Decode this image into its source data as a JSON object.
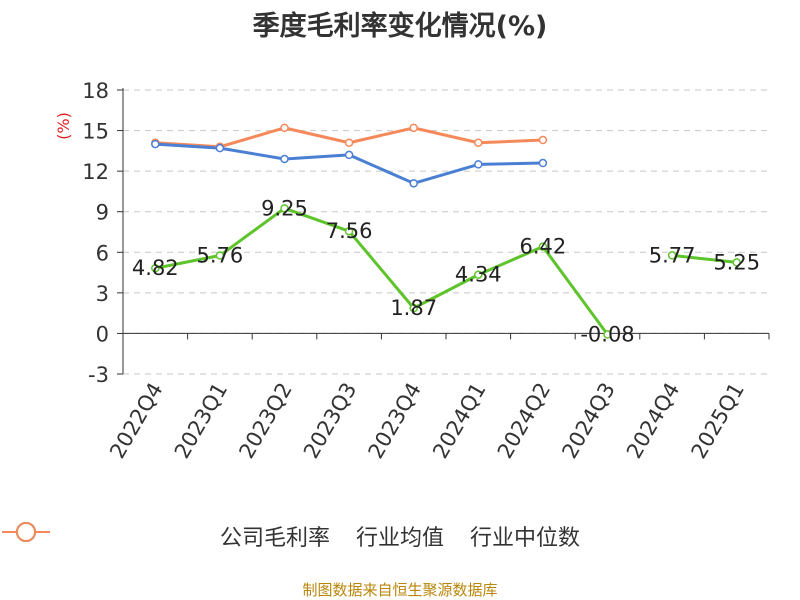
{
  "header": {
    "title": "季度毛利率变化情况(%)"
  },
  "footer": {
    "source": "制图数据来自恒生聚源数据库"
  },
  "colors": {
    "company": "#5ec42b",
    "industry_avg": "#4a7fd4",
    "industry_median": "#f5895a",
    "axis": "#333333",
    "grid": "#c8c8c8",
    "unit": "#e02020"
  },
  "chart_data": {
    "type": "line",
    "title": "季度毛利率变化情况(%)",
    "ylabel": "(%)",
    "xlabel": "",
    "categories": [
      "2022Q4",
      "2023Q1",
      "2023Q2",
      "2023Q3",
      "2023Q4",
      "2024Q1",
      "2024Q2",
      "2024Q3",
      "2024Q4",
      "2025Q1"
    ],
    "ylim": [
      -3,
      18
    ],
    "yticks": [
      -3,
      0,
      3,
      6,
      9,
      12,
      15,
      18
    ],
    "grid": true,
    "legend_position": "bottom",
    "series": [
      {
        "name": "公司毛利率",
        "color": "#5ec42b",
        "labels": true,
        "values": [
          4.82,
          5.76,
          9.25,
          7.56,
          1.87,
          4.34,
          6.42,
          -0.08,
          5.77,
          5.25
        ],
        "value_labels": [
          "4.82",
          "5.76",
          "9.25",
          "7.56",
          "1.87",
          "4.34",
          "6.42",
          "-0.08",
          "5.77",
          "5.25"
        ],
        "breaks_after": [
          7
        ]
      },
      {
        "name": "行业均值",
        "color": "#4a7fd4",
        "labels": false,
        "values": [
          14.0,
          13.7,
          12.9,
          13.2,
          11.1,
          12.5,
          12.6,
          null,
          null,
          null
        ]
      },
      {
        "name": "行业中位数",
        "color": "#f5895a",
        "labels": false,
        "values": [
          14.1,
          13.8,
          15.2,
          14.1,
          15.2,
          14.1,
          14.3,
          null,
          null,
          null
        ]
      }
    ]
  }
}
